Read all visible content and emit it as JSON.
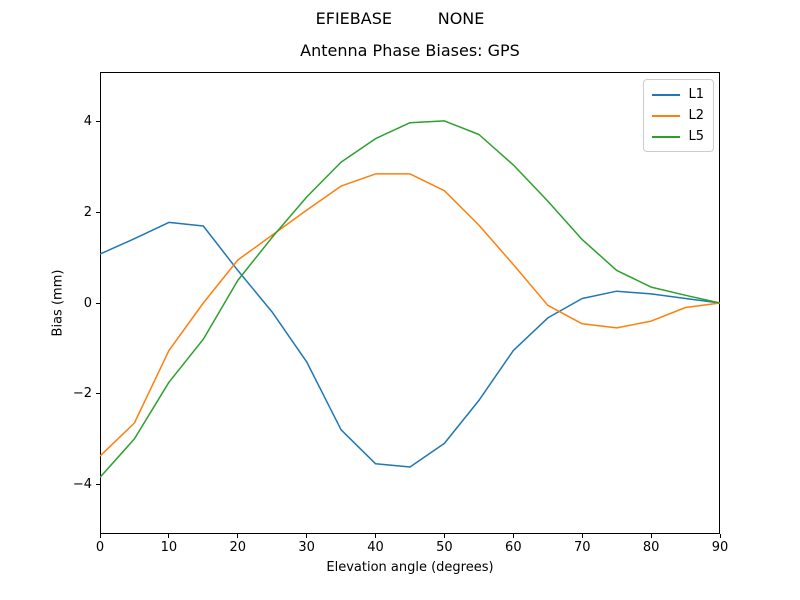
{
  "header": {
    "suptitle": "EFIEBASE         NONE",
    "title": "Antenna Phase Biases: GPS"
  },
  "chart_data": {
    "type": "line",
    "suptitle": "EFIEBASE         NONE",
    "title": "Antenna Phase Biases: GPS",
    "xlabel": "Elevation angle (degrees)",
    "ylabel": "Bias (mm)",
    "xlim": [
      0,
      90
    ],
    "ylim": [
      -5.1,
      5.1
    ],
    "grid": false,
    "legend_position": "upper right",
    "x_ticks": [
      0,
      10,
      20,
      30,
      40,
      50,
      60,
      70,
      80,
      90
    ],
    "x_tick_labels": [
      "0",
      "10",
      "20",
      "30",
      "40",
      "50",
      "60",
      "70",
      "80",
      "90"
    ],
    "y_ticks": [
      -4,
      -2,
      0,
      2,
      4
    ],
    "y_tick_labels": [
      "−4",
      "−2",
      "0",
      "2",
      "4"
    ],
    "x": [
      0,
      5,
      10,
      15,
      20,
      25,
      30,
      35,
      40,
      45,
      50,
      55,
      60,
      65,
      70,
      75,
      80,
      85,
      90
    ],
    "series": [
      {
        "name": "L1",
        "color": "#1f77b4",
        "values": [
          1.08,
          1.42,
          1.78,
          1.7,
          0.72,
          -0.2,
          -1.3,
          -2.8,
          -3.55,
          -3.62,
          -3.1,
          -2.15,
          -1.05,
          -0.33,
          0.1,
          0.26,
          0.2,
          0.1,
          0.0
        ]
      },
      {
        "name": "L2",
        "color": "#ff7f0e",
        "values": [
          -3.38,
          -2.65,
          -1.05,
          0.0,
          0.95,
          1.5,
          2.05,
          2.58,
          2.85,
          2.85,
          2.48,
          1.72,
          0.85,
          -0.05,
          -0.46,
          -0.55,
          -0.4,
          -0.1,
          0.0
        ]
      },
      {
        "name": "L5",
        "color": "#2ca02c",
        "values": [
          -3.85,
          -3.0,
          -1.75,
          -0.8,
          0.5,
          1.45,
          2.34,
          3.11,
          3.63,
          3.98,
          4.02,
          3.72,
          3.05,
          2.25,
          1.4,
          0.72,
          0.35,
          0.17,
          0.0
        ]
      }
    ]
  }
}
